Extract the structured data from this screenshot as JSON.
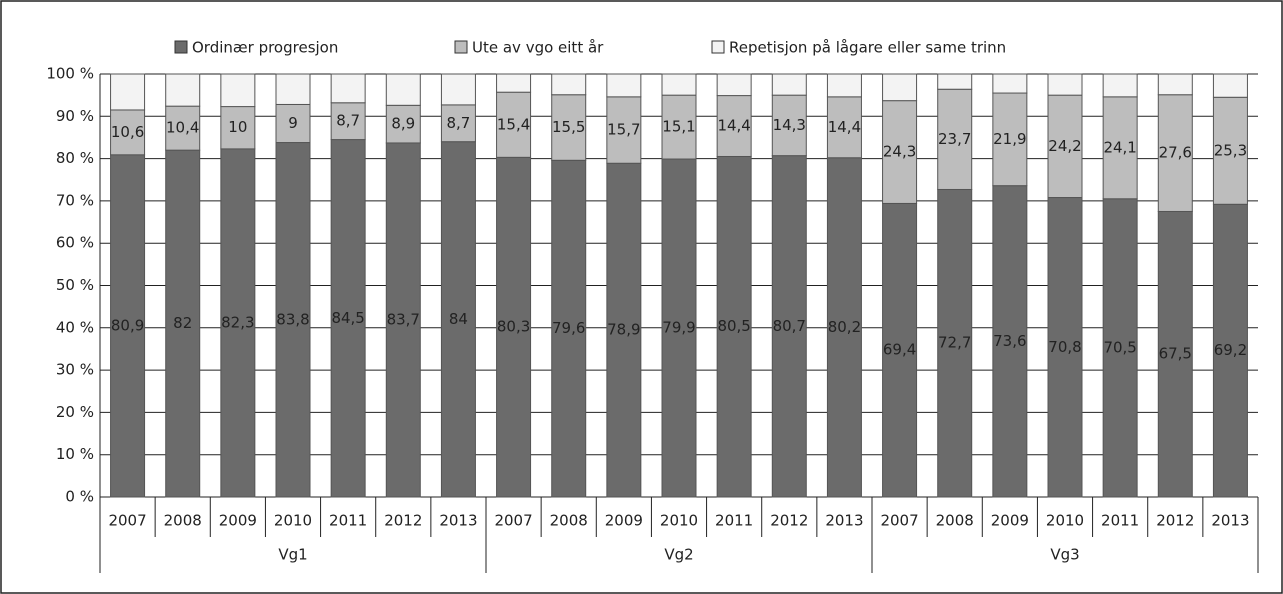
{
  "chart_data": {
    "type": "stacked_bar",
    "categories": [
      "2007",
      "2008",
      "2009",
      "2010",
      "2011",
      "2012",
      "2013",
      "2007",
      "2008",
      "2009",
      "2010",
      "2011",
      "2012",
      "2013",
      "2007",
      "2008",
      "2009",
      "2010",
      "2011",
      "2012",
      "2013"
    ],
    "groups": [
      "Vg1",
      "Vg2",
      "Vg3"
    ],
    "series": [
      {
        "name": "Ordinær progresjon",
        "color": "#6b6b6b",
        "values": [
          80.9,
          82,
          82.3,
          83.8,
          84.5,
          83.7,
          84,
          80.3,
          79.6,
          78.9,
          79.9,
          80.5,
          80.7,
          80.2,
          69.4,
          72.7,
          73.6,
          70.8,
          70.5,
          67.5,
          69.2
        ],
        "value_labels": [
          "80,9",
          "82",
          "82,3",
          "83,8",
          "84,5",
          "83,7",
          "84",
          "80,3",
          "79,6",
          "78,9",
          "79,9",
          "80,5",
          "80,7",
          "80,2",
          "69,4",
          "72,7",
          "73,6",
          "70,8",
          "70,5",
          "67,5",
          "69,2"
        ]
      },
      {
        "name": "Ute av vgo eitt år",
        "color": "#bdbdbd",
        "values": [
          10.6,
          10.4,
          10,
          9,
          8.7,
          8.9,
          8.7,
          15.4,
          15.5,
          15.7,
          15.1,
          14.4,
          14.3,
          14.4,
          24.3,
          23.7,
          21.9,
          24.2,
          24.1,
          27.6,
          25.3
        ],
        "value_labels": [
          "10,6",
          "10,4",
          "10",
          "9",
          "8,7",
          "8,9",
          "8,7",
          "15,4",
          "15,5",
          "15,7",
          "15,1",
          "14,4",
          "14,3",
          "14,4",
          "24,3",
          "23,7",
          "21,9",
          "24,2",
          "24,1",
          "27,6",
          "25,3"
        ]
      },
      {
        "name": "Repetisjon på lågare eller same trinn",
        "color": "#f3f3f3",
        "values": [
          8.5,
          7.6,
          7.7,
          7.2,
          6.8,
          7.4,
          7.3,
          4.3,
          4.9,
          5.4,
          5.0,
          5.1,
          5.0,
          5.4,
          6.3,
          3.6,
          4.5,
          5.0,
          5.4,
          4.9,
          5.5
        ]
      }
    ],
    "ylim": [
      0,
      100
    ],
    "yticks": [
      {
        "value": 0,
        "label": "0 %"
      },
      {
        "value": 10,
        "label": "10 %"
      },
      {
        "value": 20,
        "label": "20 %"
      },
      {
        "value": 30,
        "label": "30 %"
      },
      {
        "value": 40,
        "label": "40 %"
      },
      {
        "value": 50,
        "label": "50 %"
      },
      {
        "value": 60,
        "label": "60 %"
      },
      {
        "value": 70,
        "label": "70 %"
      },
      {
        "value": 80,
        "label": "80 %"
      },
      {
        "value": 90,
        "label": "90 %"
      },
      {
        "value": 100,
        "label": "100 %"
      }
    ],
    "grid": true,
    "legend": "top"
  }
}
